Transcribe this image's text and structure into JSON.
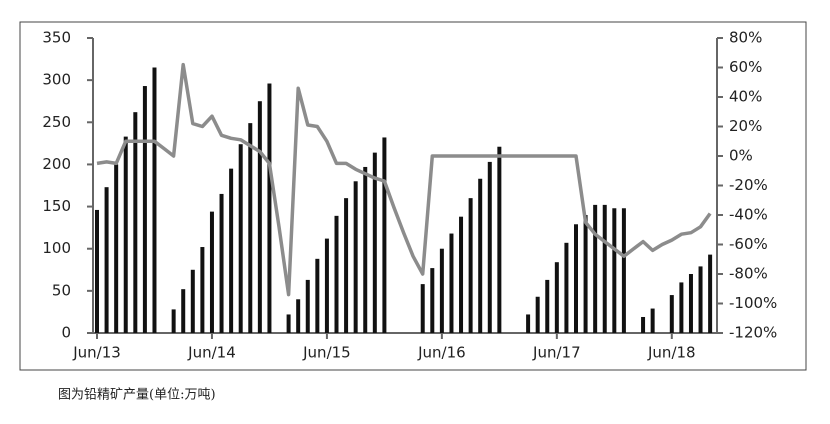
{
  "chart_data": {
    "type": "bar",
    "categories": [
      "Jun/13",
      null,
      null,
      null,
      null,
      null,
      null,
      null,
      null,
      null,
      null,
      null,
      "Jun/14",
      null,
      null,
      null,
      null,
      null,
      null,
      null,
      null,
      null,
      null,
      null,
      "Jun/15",
      null,
      null,
      null,
      null,
      null,
      null,
      null,
      null,
      null,
      null,
      null,
      "Jun/16",
      null,
      null,
      null,
      null,
      null,
      null,
      null,
      null,
      null,
      null,
      null,
      "Jun/17",
      null,
      null,
      null,
      null,
      null,
      null,
      null,
      null,
      null,
      null,
      null,
      "Jun/18",
      null,
      null,
      null,
      null
    ],
    "series": [
      {
        "type": "bar",
        "color": "#111111",
        "values": [
          146,
          173,
          200,
          233,
          262,
          293,
          315,
          null,
          28,
          52,
          75,
          102,
          144,
          165,
          195,
          224,
          249,
          275,
          296,
          null,
          22,
          40,
          63,
          88,
          112,
          139,
          160,
          180,
          197,
          214,
          232,
          null,
          null,
          null,
          58,
          77,
          100,
          118,
          138,
          160,
          183,
          203,
          221,
          null,
          null,
          22,
          43,
          63,
          84,
          107,
          129,
          140,
          152,
          152,
          148,
          148,
          null,
          19,
          29,
          null,
          45,
          60,
          70,
          79,
          93
        ]
      },
      {
        "type": "line",
        "axis": "y2",
        "color": "#8c8c8c",
        "values": [
          -5,
          -4,
          -5,
          10,
          10,
          10,
          10,
          5,
          0,
          62,
          22,
          20,
          27,
          14,
          12,
          11,
          7,
          3,
          -5,
          -48,
          -94,
          46,
          21,
          20,
          10,
          -5,
          -5,
          -9,
          -12,
          -15,
          -17,
          -35,
          -52,
          -68,
          -80,
          0,
          0,
          0,
          0,
          0,
          0,
          0,
          0,
          0,
          0,
          0,
          0,
          0,
          0,
          0,
          0,
          -45,
          -53,
          -58,
          -63,
          -68,
          -63,
          -58,
          -64,
          -60,
          -57,
          -53,
          -52,
          -48,
          -39
        ]
      }
    ],
    "ylim": [
      0,
      350
    ],
    "yticks": [
      0,
      50,
      100,
      150,
      200,
      250,
      300,
      350
    ],
    "y2lim": [
      -120,
      80
    ],
    "y2ticks": [
      {
        "value": 80,
        "label": "80%"
      },
      {
        "value": 60,
        "label": "60%"
      },
      {
        "value": 40,
        "label": "40%"
      },
      {
        "value": 20,
        "label": "20%"
      },
      {
        "value": 0,
        "label": "0%"
      },
      {
        "value": -20,
        "label": "-20%"
      },
      {
        "value": -40,
        "label": "-40%"
      },
      {
        "value": -60,
        "label": "-60%"
      },
      {
        "value": -80,
        "label": "-80%"
      },
      {
        "value": -100,
        "label": "-100%"
      },
      {
        "value": -120,
        "label": "-120%"
      }
    ]
  },
  "caption": "图为铅精矿产量(单位:万吨)"
}
